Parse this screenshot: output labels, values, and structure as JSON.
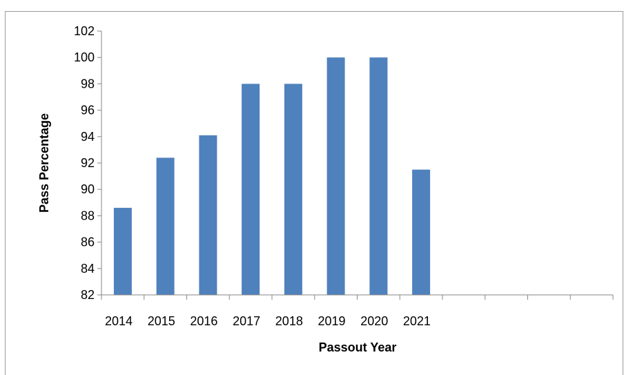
{
  "chart_data": {
    "type": "bar",
    "categories": [
      "2014",
      "2015",
      "2016",
      "2017",
      "2018",
      "2019",
      "2020",
      "2021",
      "",
      "",
      "",
      ""
    ],
    "values": [
      88.6,
      92.4,
      94.1,
      98.0,
      98.0,
      100.0,
      100.0,
      91.5,
      null,
      null,
      null,
      null
    ],
    "xlabel": "Passout Year",
    "ylabel": "Pass Percentage",
    "ylim": [
      82,
      102
    ],
    "yticks": [
      82,
      84,
      86,
      88,
      90,
      92,
      94,
      96,
      98,
      100,
      102
    ],
    "grid": false,
    "legend": "none",
    "bar_color": "#4F81BD"
  }
}
